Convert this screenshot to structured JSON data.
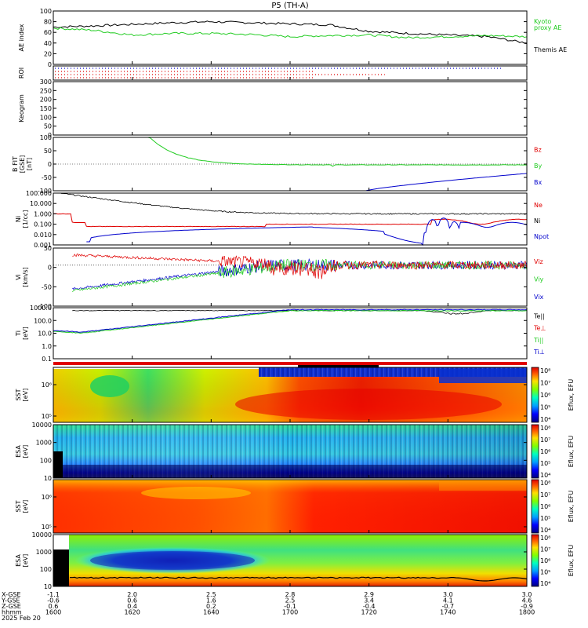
{
  "title": "P5  (TH-A)",
  "colors": {
    "black": "#000000",
    "red": "#e00000",
    "green": "#22cc22",
    "blue": "#0000cc",
    "roi_bar": "#e00000"
  },
  "panels": [
    {
      "key": "ae",
      "ylabel": "AE index",
      "ymin": 0,
      "ymax": 100,
      "ticks": [
        "0",
        "20",
        "40",
        "60",
        "80",
        "100"
      ],
      "legend": [
        {
          "text": "Kyoto",
          "color": "#22cc22"
        },
        {
          "text": "proxy AE",
          "color": "#22cc22"
        },
        {
          "text": "Themis AE",
          "color": "#000000"
        }
      ]
    },
    {
      "key": "roi",
      "ylabel": "ROI",
      "ticks": []
    },
    {
      "key": "keo",
      "ylabel": "Keogram",
      "ticks": [
        "0",
        "50",
        "100",
        "150",
        "200",
        "250",
        "300"
      ]
    },
    {
      "key": "b",
      "ylabel": "B FIT [GSE] [nT]",
      "ticks": [
        "-100",
        "-50",
        "0",
        "50",
        "100"
      ],
      "legend": [
        {
          "text": "Bz",
          "color": "#e00000"
        },
        {
          "text": "By",
          "color": "#22cc22"
        },
        {
          "text": "Bx",
          "color": "#0000cc"
        }
      ]
    },
    {
      "key": "ni",
      "ylabel": "Ni [1/cc]",
      "ticks": [
        "0.001",
        "0.010",
        "0.100",
        "1.000",
        "10.000",
        "100.000"
      ],
      "legend": [
        {
          "text": "Ne",
          "color": "#e00000"
        },
        {
          "text": "Ni",
          "color": "#000000"
        },
        {
          "text": "Npot",
          "color": "#0000cc"
        }
      ]
    },
    {
      "key": "vi",
      "ylabel": "Vi [km/s]",
      "ticks": [
        "-100",
        "-50",
        "0",
        "50"
      ],
      "legend": [
        {
          "text": "Viz",
          "color": "#e00000"
        },
        {
          "text": "Viy",
          "color": "#22cc22"
        },
        {
          "text": "Vix",
          "color": "#0000cc"
        }
      ]
    },
    {
      "key": "ti",
      "ylabel": "Ti [eV]",
      "ticks": [
        "0.1",
        "1.0",
        "10.0",
        "100.0",
        "1000.0"
      ],
      "legend": [
        {
          "text": "Te||",
          "color": "#000000"
        },
        {
          "text": "Te⊥",
          "color": "#e00000"
        },
        {
          "text": "Ti||",
          "color": "#22cc22"
        },
        {
          "text": "Ti⊥",
          "color": "#0000cc"
        }
      ]
    },
    {
      "key": "sst_i",
      "ylabel": "SST [eV]",
      "ticks": [
        "10⁵",
        "10⁶"
      ],
      "cbar_ticks": [
        "10⁴",
        "10⁵",
        "10⁶",
        "10⁷",
        "10⁸"
      ],
      "cbar_label": "Eflux, EFU"
    },
    {
      "key": "esa_i",
      "ylabel": "ESA [eV]",
      "ticks": [
        "10",
        "100",
        "1000",
        "10000"
      ],
      "cbar_ticks": [
        "10⁴",
        "10⁵",
        "10⁶",
        "10⁷",
        "10⁸"
      ],
      "cbar_label": "Eflux, EFU"
    },
    {
      "key": "sst_e",
      "ylabel": "SST [eV]",
      "ticks": [
        "10⁵",
        "10⁶"
      ],
      "cbar_ticks": [
        "10⁴",
        "10⁵",
        "10⁶",
        "10⁷",
        "10⁸"
      ],
      "cbar_label": "Eflux, EFU"
    },
    {
      "key": "esa_e",
      "ylabel": "ESA [eV]",
      "ticks": [
        "10",
        "100",
        "1000",
        "10000"
      ],
      "cbar_ticks": [
        "10⁴",
        "10⁵",
        "10⁶",
        "10⁷",
        "10⁸"
      ],
      "cbar_label": "Eflux, EFU"
    }
  ],
  "xaxis": {
    "rows": [
      {
        "label": "X-GSE",
        "values": [
          "-1.1",
          "2.0",
          "2.5",
          "2.8",
          "2.9",
          "3.0",
          "3.0"
        ]
      },
      {
        "label": "Y-GSE",
        "values": [
          "-0.6",
          "0.6",
          "1.6",
          "2.5",
          "3.4",
          "4.1",
          "4.6"
        ]
      },
      {
        "label": "Z-GSE",
        "values": [
          "0.6",
          "0.4",
          "0.2",
          "-0.1",
          "-0.4",
          "-0.7",
          "-0.9"
        ]
      },
      {
        "label": "hhmm",
        "values": [
          "1600",
          "1620",
          "1640",
          "1700",
          "1720",
          "1740",
          "1800"
        ]
      }
    ],
    "date": "2025 Feb 20"
  },
  "chart_data": [
    {
      "type": "line",
      "title": "P5  (TH-A)",
      "ylabel": "AE index",
      "ylim": [
        0,
        100
      ],
      "x": [
        "1600",
        "1610",
        "1620",
        "1630",
        "1640",
        "1650",
        "1700",
        "1710",
        "1720",
        "1730",
        "1740",
        "1750",
        "1800"
      ],
      "series": [
        {
          "name": "Themis AE",
          "values": [
            70,
            72,
            75,
            78,
            80,
            78,
            76,
            74,
            62,
            58,
            55,
            52,
            40
          ]
        },
        {
          "name": "Kyoto proxy AE",
          "values": [
            68,
            64,
            55,
            58,
            58,
            56,
            52,
            54,
            55,
            50,
            52,
            54,
            52
          ]
        }
      ]
    },
    {
      "type": "line",
      "ylabel": "B FIT [GSE] [nT]",
      "ylim": [
        -100,
        100
      ],
      "x": [
        "1600",
        "1620",
        "1640",
        "1700",
        "1720",
        "1740",
        "1800"
      ],
      "series": [
        {
          "name": "By",
          "values": [
            null,
            100,
            10,
            -2,
            -3,
            -3,
            -3
          ]
        },
        {
          "name": "Bx",
          "values": [
            null,
            null,
            null,
            null,
            -95,
            -60,
            -35
          ]
        }
      ]
    },
    {
      "type": "line",
      "ylabel": "Ni [1/cc]",
      "scale": "log",
      "ylim": [
        0.001,
        100
      ],
      "x": [
        "1600",
        "1620",
        "1640",
        "1700",
        "1720",
        "1740",
        "1800"
      ],
      "series": [
        {
          "name": "Ni",
          "values": [
            100,
            5,
            2,
            1.5,
            1.2,
            1.1,
            1.0
          ]
        },
        {
          "name": "Ne",
          "values": [
            1,
            0.06,
            0.05,
            0.1,
            0.1,
            0.2,
            0.2
          ]
        },
        {
          "name": "Npot",
          "values": [
            0.005,
            0.01,
            0.03,
            0.05,
            0.02,
            0.002,
            0.1
          ]
        }
      ]
    },
    {
      "type": "line",
      "ylabel": "Vi [km/s]",
      "ylim": [
        -100,
        50
      ],
      "x": [
        "1600",
        "1620",
        "1640",
        "1700",
        "1720",
        "1740",
        "1800"
      ],
      "series": [
        {
          "name": "Viz",
          "values": [
            30,
            20,
            10,
            0,
            0,
            0,
            0
          ]
        },
        {
          "name": "Viy",
          "values": [
            -70,
            -40,
            -10,
            0,
            0,
            0,
            0
          ]
        },
        {
          "name": "Vix",
          "values": [
            -70,
            -30,
            -5,
            0,
            0,
            0,
            0
          ]
        }
      ]
    },
    {
      "type": "line",
      "ylabel": "Ti [eV]",
      "scale": "log",
      "ylim": [
        0.1,
        1000
      ],
      "x": [
        "1600",
        "1620",
        "1640",
        "1700",
        "1720",
        "1740",
        "1800"
      ],
      "series": [
        {
          "name": "Te||",
          "values": [
            1500,
            1500,
            1500,
            1500,
            1400,
            1200,
            1300
          ]
        },
        {
          "name": "Ti||",
          "values": [
            20,
            100,
            400,
            1000,
            1200,
            1200,
            1300
          ]
        },
        {
          "name": "Ti⊥",
          "values": [
            20,
            110,
            420,
            1000,
            1200,
            1200,
            1300
          ]
        }
      ]
    }
  ]
}
